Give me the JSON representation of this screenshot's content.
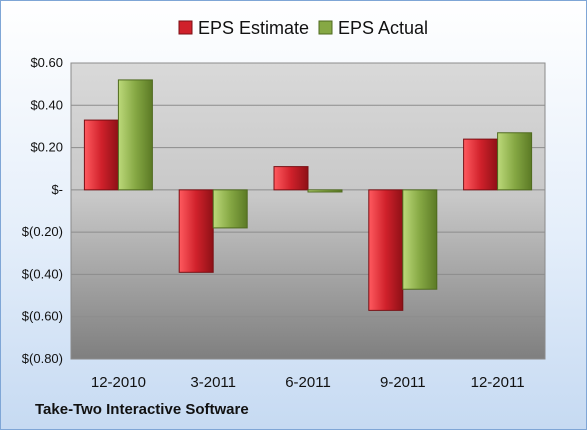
{
  "footer": {
    "company": "Take-Two Interactive Software"
  },
  "colors": {
    "estimate": "#d0212b",
    "actual": "#86a844"
  },
  "chart_data": {
    "type": "bar",
    "categories": [
      "12-2010",
      "3-2011",
      "6-2011",
      "9-2011",
      "12-2011"
    ],
    "series": [
      {
        "name": "EPS Estimate",
        "values": [
          0.33,
          -0.39,
          0.11,
          -0.57,
          0.24
        ]
      },
      {
        "name": "EPS Actual",
        "values": [
          0.52,
          -0.18,
          -0.01,
          -0.47,
          0.27
        ]
      }
    ],
    "ylim": [
      -0.8,
      0.6
    ],
    "yticks": [
      0.6,
      0.4,
      0.2,
      0,
      -0.2,
      -0.4,
      -0.6,
      -0.8
    ],
    "ytick_labels": [
      "$0.60",
      "$0.40",
      "$0.20",
      "$-",
      "$(0.20)",
      "$(0.40)",
      "$(0.60)",
      "$(0.80)"
    ],
    "legend": "top",
    "grid": true
  }
}
